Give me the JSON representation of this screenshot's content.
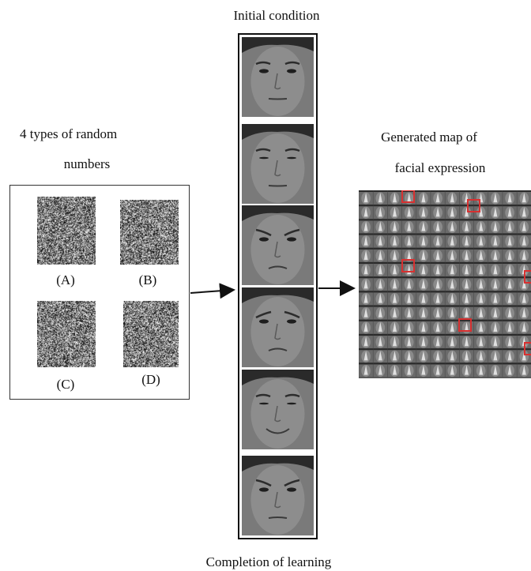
{
  "labels": {
    "initial_condition": "Initial condition",
    "random_title_line1": "4 types of random",
    "random_title_line2": "numbers",
    "map_title_line1": "Generated map of",
    "map_title_line2": "facial expression",
    "completion": "Completion of learning"
  },
  "random_samples": [
    {
      "id": "A",
      "label": "(A)"
    },
    {
      "id": "B",
      "label": "(B)"
    },
    {
      "id": "C",
      "label": "(C)"
    },
    {
      "id": "D",
      "label": "(D)"
    }
  ],
  "faces": [
    {
      "expression": "neutral"
    },
    {
      "expression": "squint"
    },
    {
      "expression": "frown"
    },
    {
      "expression": "sad"
    },
    {
      "expression": "smile"
    },
    {
      "expression": "angry"
    }
  ],
  "colors": {
    "highlight": "#d83030",
    "face_bg": "#7a7a7a",
    "map_bg": "#5a5a5a"
  }
}
